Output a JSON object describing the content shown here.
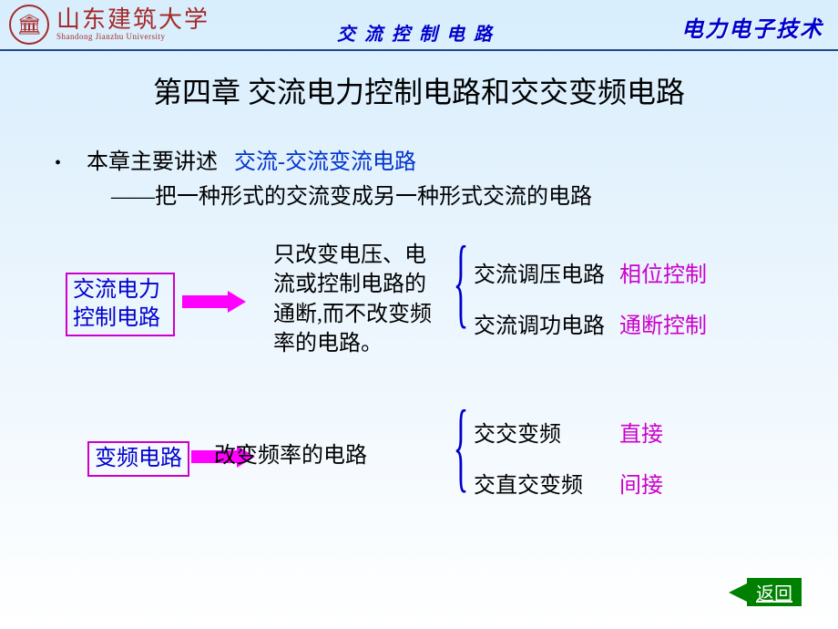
{
  "header": {
    "university_cn": "山东建筑大学",
    "university_en": "Shandong Jianzhu University",
    "center_title": "交流控制电路",
    "right_title": "电力电子技术"
  },
  "chapter_title": "第四章 交流电力控制电路和交交变频电路",
  "intro": {
    "prefix": "本章主要讲述",
    "highlight": "交流-交流变流电路",
    "sub": "——把一种形式的交流变成另一种形式交流的电路"
  },
  "diagram": {
    "box1_line1": "交流电力",
    "box1_line2": "控制电路",
    "box2": "变频电路",
    "desc1": "只改变电压、电流或控制电路的通断,而不改变频率的电路。",
    "desc2": "改变频率的电路",
    "group1": [
      {
        "label": "交流调压电路",
        "ctrl": "相位控制"
      },
      {
        "label": "交流调功电路",
        "ctrl": "通断控制"
      }
    ],
    "group2": [
      {
        "label": "交交变频",
        "ctrl": "直接"
      },
      {
        "label": "交直交变频",
        "ctrl": "间接"
      }
    ]
  },
  "return_label": "返回",
  "colors": {
    "header_red": "#a52a2a",
    "title_blue": "#0000cc",
    "magenta": "#cc00cc",
    "arrow_magenta": "#ff00ff",
    "green": "#008000",
    "link_blue": "#0033cc",
    "hr": "#1a4a8a"
  },
  "typography": {
    "chapter_fontsize": 32,
    "body_fontsize": 24,
    "header_center_fontsize": 20,
    "header_right_fontsize": 24
  }
}
